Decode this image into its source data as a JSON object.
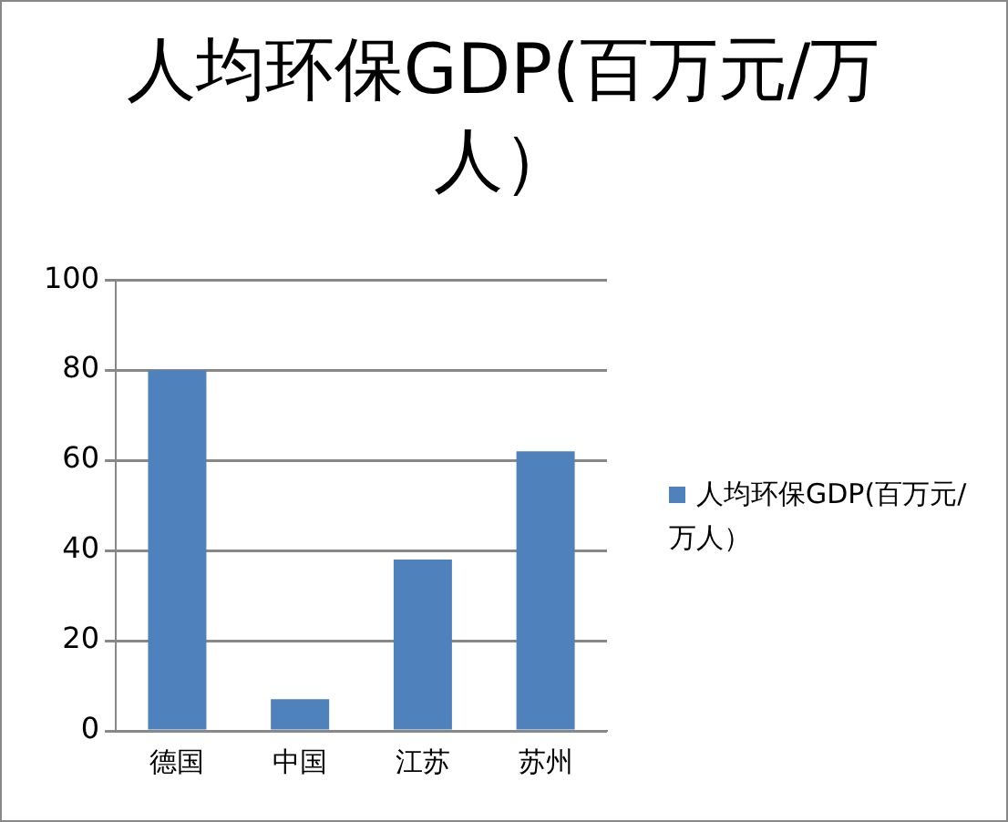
{
  "chart_data": {
    "type": "bar",
    "title": "人均环保GDP(百万元/万人）",
    "categories": [
      "德国",
      "中国",
      "江苏",
      "苏州"
    ],
    "series": [
      {
        "name": "人均环保GDP(百万元/万人）",
        "color": "#4f81bd",
        "values": [
          80,
          7,
          38,
          62
        ]
      }
    ],
    "ylim": [
      0,
      100
    ],
    "yticks": [
      0,
      20,
      40,
      60,
      80,
      100
    ],
    "grid": "y",
    "legend": "right"
  }
}
